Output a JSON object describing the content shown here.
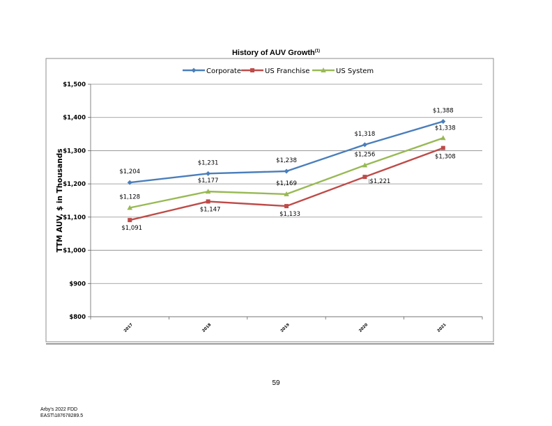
{
  "chart_data": {
    "type": "line",
    "title": "History of AUV Growth",
    "title_superscript": "(1)",
    "ylabel": "TTM AUV, $ in Thousands",
    "xlabel": "",
    "categories": [
      "2017",
      "2018",
      "2019",
      "2020",
      "2021"
    ],
    "ylim": [
      800,
      1500
    ],
    "yticks": [
      "$800",
      "$900",
      "$1,000",
      "$1,100",
      "$1,200",
      "$1,300",
      "$1,400",
      "$1,500"
    ],
    "grid": true,
    "legend": "top-center",
    "series": [
      {
        "name": "Corporate",
        "color": "#4a7ebb",
        "marker": "diamond",
        "values": [
          1204,
          1231,
          1238,
          1318,
          1388
        ],
        "labels": [
          "$1,204",
          "$1,231",
          "$1,238",
          "$1,318",
          "$1,388"
        ]
      },
      {
        "name": "US Franchise",
        "color": "#be4b48",
        "marker": "square",
        "values": [
          1091,
          1147,
          1133,
          1221,
          1308
        ],
        "labels": [
          "$1,091",
          "$1,147",
          "$1,133",
          "$1,221",
          "$1,308"
        ]
      },
      {
        "name": "US System",
        "color": "#98b954",
        "marker": "triangle",
        "values": [
          1128,
          1177,
          1169,
          1256,
          1338
        ],
        "labels": [
          "$1,128",
          "$1,177",
          "$1,169",
          "$1,256",
          "$1,338"
        ]
      }
    ]
  },
  "page_number": "59",
  "footer": {
    "line1": "Arby's 2022 FDD",
    "line2": "EAST\\187678289.5"
  }
}
